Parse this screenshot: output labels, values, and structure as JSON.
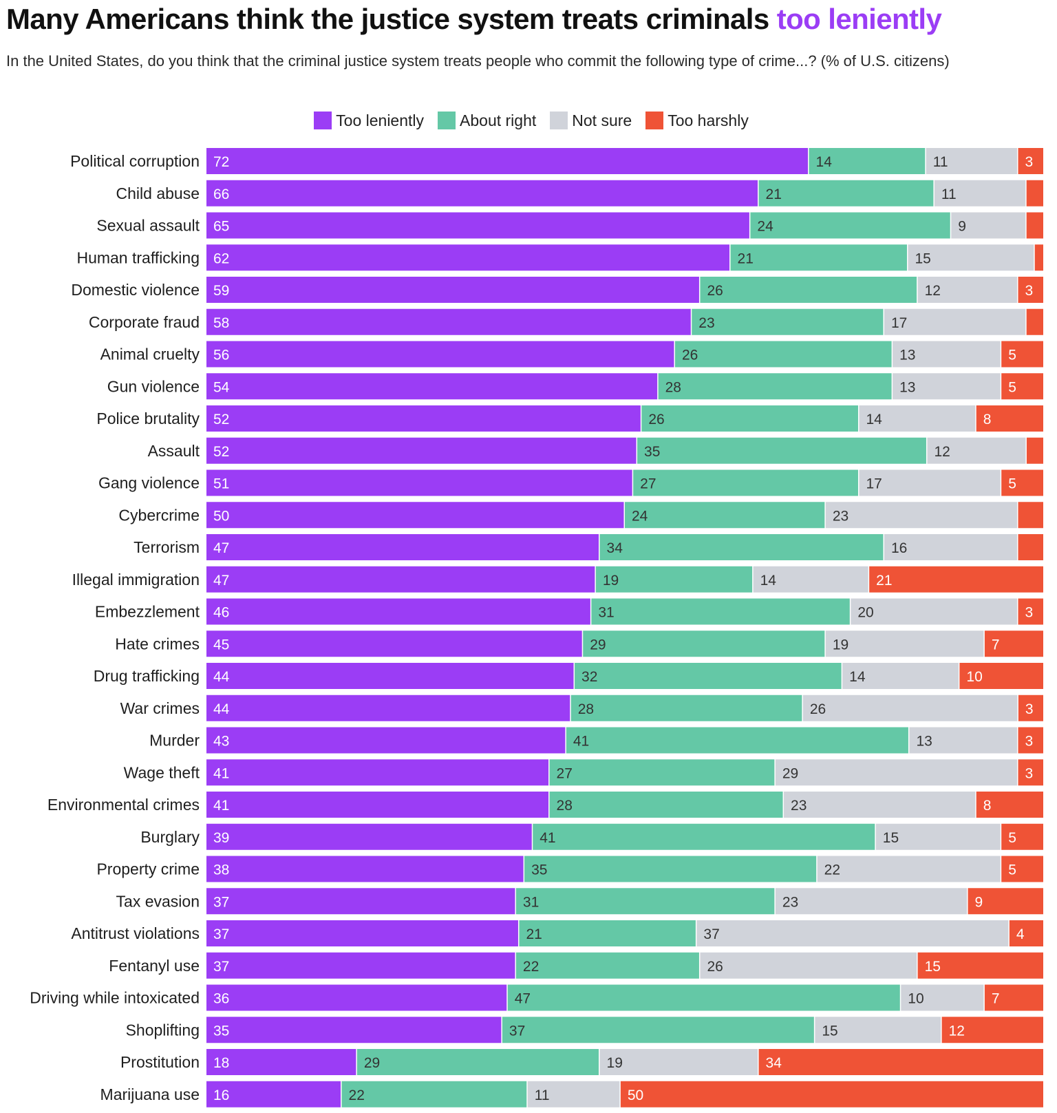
{
  "title": {
    "main": "Many Americans think the justice system treats criminals ",
    "highlight": "too leniently"
  },
  "subtitle": "In the United States, do you think that the criminal justice system treats people who commit the following type of crime...? (% of U.S. citizens)",
  "colors": {
    "title_highlight": "#9b3df5",
    "value_light": "#ffffff",
    "value_dark": "#333333"
  },
  "chart_data": {
    "type": "bar",
    "orientation": "horizontal",
    "stacked": true,
    "legend_position": "top-center",
    "grid": false,
    "categories": [
      "Political corruption",
      "Child abuse",
      "Sexual assault",
      "Human trafficking",
      "Domestic violence",
      "Corporate fraud",
      "Animal cruelty",
      "Gun violence",
      "Police brutality",
      "Assault",
      "Gang violence",
      "Cybercrime",
      "Terrorism",
      "Illegal immigration",
      "Embezzlement",
      "Hate crimes",
      "Drug trafficking",
      "War crimes",
      "Murder",
      "Wage theft",
      "Environmental crimes",
      "Burglary",
      "Property crime",
      "Tax evasion",
      "Antitrust violations",
      "Fentanyl use",
      "Driving while intoxicated",
      "Shoplifting",
      "Prostitution",
      "Marijuana use"
    ],
    "series": [
      {
        "name": "Too leniently",
        "color": "#9b3df5",
        "values": [
          72,
          66,
          65,
          62,
          59,
          58,
          56,
          54,
          52,
          52,
          51,
          50,
          47,
          47,
          46,
          45,
          44,
          44,
          43,
          41,
          41,
          39,
          38,
          37,
          37,
          37,
          36,
          35,
          18,
          16
        ],
        "labels": [
          "72",
          "66",
          "65",
          "62",
          "59",
          "58",
          "56",
          "54",
          "52",
          "52",
          "51",
          "50",
          "47",
          "47",
          "46",
          "45",
          "44",
          "44",
          "43",
          "41",
          "41",
          "39",
          "38",
          "37",
          "37",
          "37",
          "36",
          "35",
          "18",
          "16"
        ]
      },
      {
        "name": "About right",
        "color": "#64c8a6",
        "values": [
          14,
          21,
          24,
          21,
          26,
          23,
          26,
          28,
          26,
          35,
          27,
          24,
          34,
          19,
          31,
          29,
          32,
          28,
          41,
          27,
          28,
          41,
          35,
          31,
          21,
          22,
          47,
          37,
          29,
          22
        ],
        "labels": [
          "14",
          "21",
          "24",
          "21",
          "26",
          "23",
          "26",
          "28",
          "26",
          "35",
          "27",
          "24",
          "34",
          "19",
          "31",
          "29",
          "32",
          "28",
          "41",
          "27",
          "28",
          "41",
          "35",
          "31",
          "21",
          "22",
          "47",
          "37",
          "29",
          "22"
        ]
      },
      {
        "name": "Not sure",
        "color": "#d0d3da",
        "values": [
          11,
          11,
          9,
          15,
          12,
          17,
          13,
          13,
          14,
          12,
          17,
          23,
          16,
          14,
          20,
          19,
          14,
          26,
          13,
          29,
          23,
          15,
          22,
          23,
          37,
          26,
          10,
          15,
          19,
          11
        ],
        "labels": [
          "11",
          "11",
          "9",
          "15",
          "12",
          "17",
          "13",
          "13",
          "14",
          "12",
          "17",
          "23",
          "16",
          "14",
          "20",
          "19",
          "14",
          "26",
          "13",
          "29",
          "23",
          "15",
          "22",
          "23",
          "37",
          "26",
          "10",
          "15",
          "19",
          "11"
        ]
      },
      {
        "name": "Too harshly",
        "color": "#ef5336",
        "values": [
          3,
          2,
          2,
          1,
          3,
          2,
          5,
          5,
          8,
          2,
          5,
          3,
          3,
          21,
          3,
          7,
          10,
          3,
          3,
          3,
          8,
          5,
          5,
          9,
          4,
          15,
          7,
          12,
          34,
          50
        ],
        "labels": [
          "3",
          "",
          "",
          "",
          "3",
          "",
          "5",
          "5",
          "8",
          "",
          "5",
          "",
          "",
          "21",
          "3",
          "7",
          "10",
          "3",
          "3",
          "3",
          "8",
          "5",
          "5",
          "9",
          "4",
          "15",
          "7",
          "12",
          "34",
          "50"
        ]
      }
    ]
  }
}
